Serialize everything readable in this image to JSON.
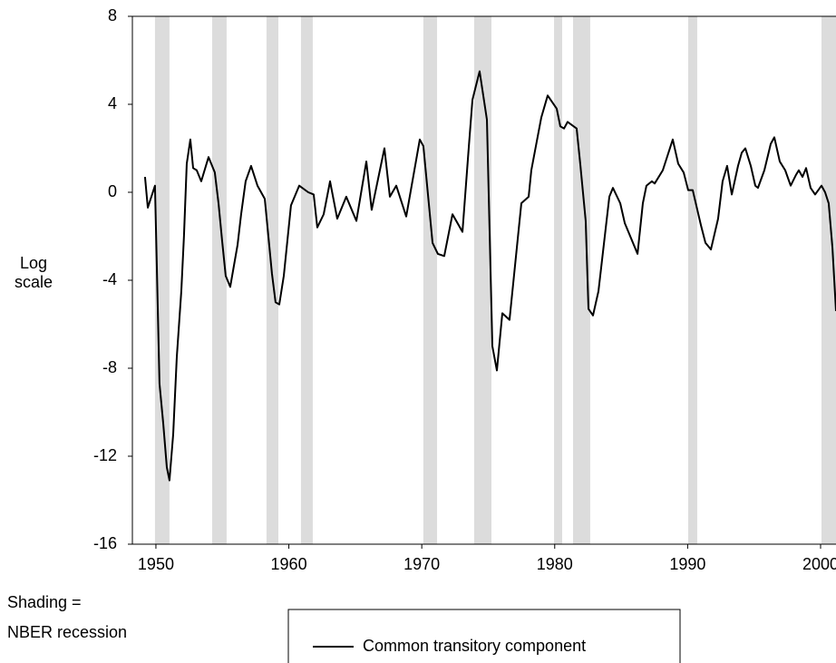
{
  "chart_data": {
    "type": "line",
    "ylabel": [
      "Log",
      "scale"
    ],
    "annotation": [
      "Shading =",
      "NBER recession"
    ],
    "xlim": [
      1948.23,
      2001.16
    ],
    "xticks": [
      1950,
      1960,
      1970,
      1980,
      1990,
      2000
    ],
    "ylim": [
      -16,
      8
    ],
    "yticks": [
      8,
      4,
      0,
      -4,
      -8,
      -12,
      -16
    ],
    "shading_color": "#dcdcdc",
    "recessions": [
      [
        1949.93,
        1951.02
      ],
      [
        1954.23,
        1955.32
      ],
      [
        1958.32,
        1959.21
      ],
      [
        1960.91,
        1961.8
      ],
      [
        1970.12,
        1971.15
      ],
      [
        1973.94,
        1975.24
      ],
      [
        1979.95,
        1980.56
      ],
      [
        1981.38,
        1982.67
      ],
      [
        1990.04,
        1990.72
      ],
      [
        2000.07,
        2001.16
      ]
    ],
    "x": [
      1949.18,
      1949.39,
      1949.93,
      1950.27,
      1950.55,
      1950.82,
      1951.02,
      1951.3,
      1951.57,
      1951.91,
      1952.11,
      1952.32,
      1952.59,
      1952.8,
      1953.07,
      1953.41,
      1953.96,
      1954.43,
      1954.71,
      1954.98,
      1955.25,
      1955.59,
      1956.14,
      1956.41,
      1956.75,
      1957.16,
      1957.64,
      1958.19,
      1958.73,
      1959.0,
      1959.28,
      1959.62,
      1960.16,
      1960.78,
      1961.46,
      1961.87,
      1962.14,
      1962.62,
      1963.1,
      1963.64,
      1963.98,
      1964.32,
      1965.08,
      1965.83,
      1966.23,
      1967.19,
      1967.6,
      1968.08,
      1968.83,
      1969.85,
      1970.12,
      1970.81,
      1971.21,
      1971.69,
      1972.31,
      1973.06,
      1973.53,
      1973.81,
      1974.35,
      1974.9,
      1975.31,
      1975.65,
      1976.06,
      1976.6,
      1977.49,
      1978.04,
      1978.24,
      1978.99,
      1979.47,
      1980.15,
      1980.42,
      1980.7,
      1980.97,
      1981.65,
      1981.92,
      1982.33,
      1982.54,
      1982.88,
      1983.29,
      1984.11,
      1984.38,
      1984.93,
      1985.27,
      1986.23,
      1986.63,
      1986.9,
      1987.31,
      1987.52,
      1988.13,
      1988.88,
      1989.29,
      1989.7,
      1990.04,
      1990.38,
      1991.0,
      1991.34,
      1991.75,
      1992.29,
      1992.63,
      1992.97,
      1993.32,
      1993.79,
      1994.07,
      1994.34,
      1994.75,
      1995.09,
      1995.29,
      1995.77,
      1996.25,
      1996.52,
      1996.93,
      1997.34,
      1997.75,
      1998.16,
      1998.36,
      1998.64,
      1998.91,
      1999.25,
      1999.59,
      2000.07,
      2000.34,
      2000.61,
      2000.89,
      2001.16
    ],
    "series": [
      {
        "name": "Common transitory component",
        "color": "#000000",
        "values": [
          0.7,
          -0.7,
          0.3,
          -8.7,
          -10.5,
          -12.5,
          -13.1,
          -11,
          -7.5,
          -4.5,
          -2,
          1.3,
          2.4,
          1.1,
          1,
          0.5,
          1.6,
          0.9,
          -0.5,
          -2.2,
          -3.8,
          -4.3,
          -2.4,
          -1,
          0.5,
          1.2,
          0.3,
          -0.3,
          -3.7,
          -5,
          -5.1,
          -3.8,
          -0.6,
          0.3,
          0,
          -0.1,
          -1.6,
          -1,
          0.5,
          -1.2,
          -0.7,
          -0.2,
          -1.3,
          1.4,
          -0.8,
          2,
          -0.2,
          0.3,
          -1.1,
          2.4,
          2.1,
          -2.3,
          -2.8,
          -2.9,
          -1,
          -1.8,
          2,
          4.2,
          5.5,
          3.3,
          -7,
          -8.1,
          -5.5,
          -5.8,
          -0.5,
          -0.2,
          1,
          3.4,
          4.4,
          3.8,
          3,
          2.9,
          3.2,
          2.9,
          1.3,
          -1.3,
          -5.3,
          -5.6,
          -4.5,
          -0.2,
          0.2,
          -0.5,
          -1.4,
          -2.8,
          -0.5,
          0.3,
          0.5,
          0.4,
          1,
          2.4,
          1.3,
          0.9,
          0.1,
          0.1,
          -1.5,
          -2.3,
          -2.6,
          -1.2,
          0.5,
          1.2,
          -0.1,
          1.2,
          1.8,
          2,
          1.2,
          0.3,
          0.2,
          1,
          2.2,
          2.5,
          1.4,
          1,
          0.3,
          0.8,
          1,
          0.7,
          1.1,
          0.2,
          -0.1,
          0.3,
          0,
          -0.5,
          -2.5,
          -5.4
        ]
      }
    ]
  }
}
